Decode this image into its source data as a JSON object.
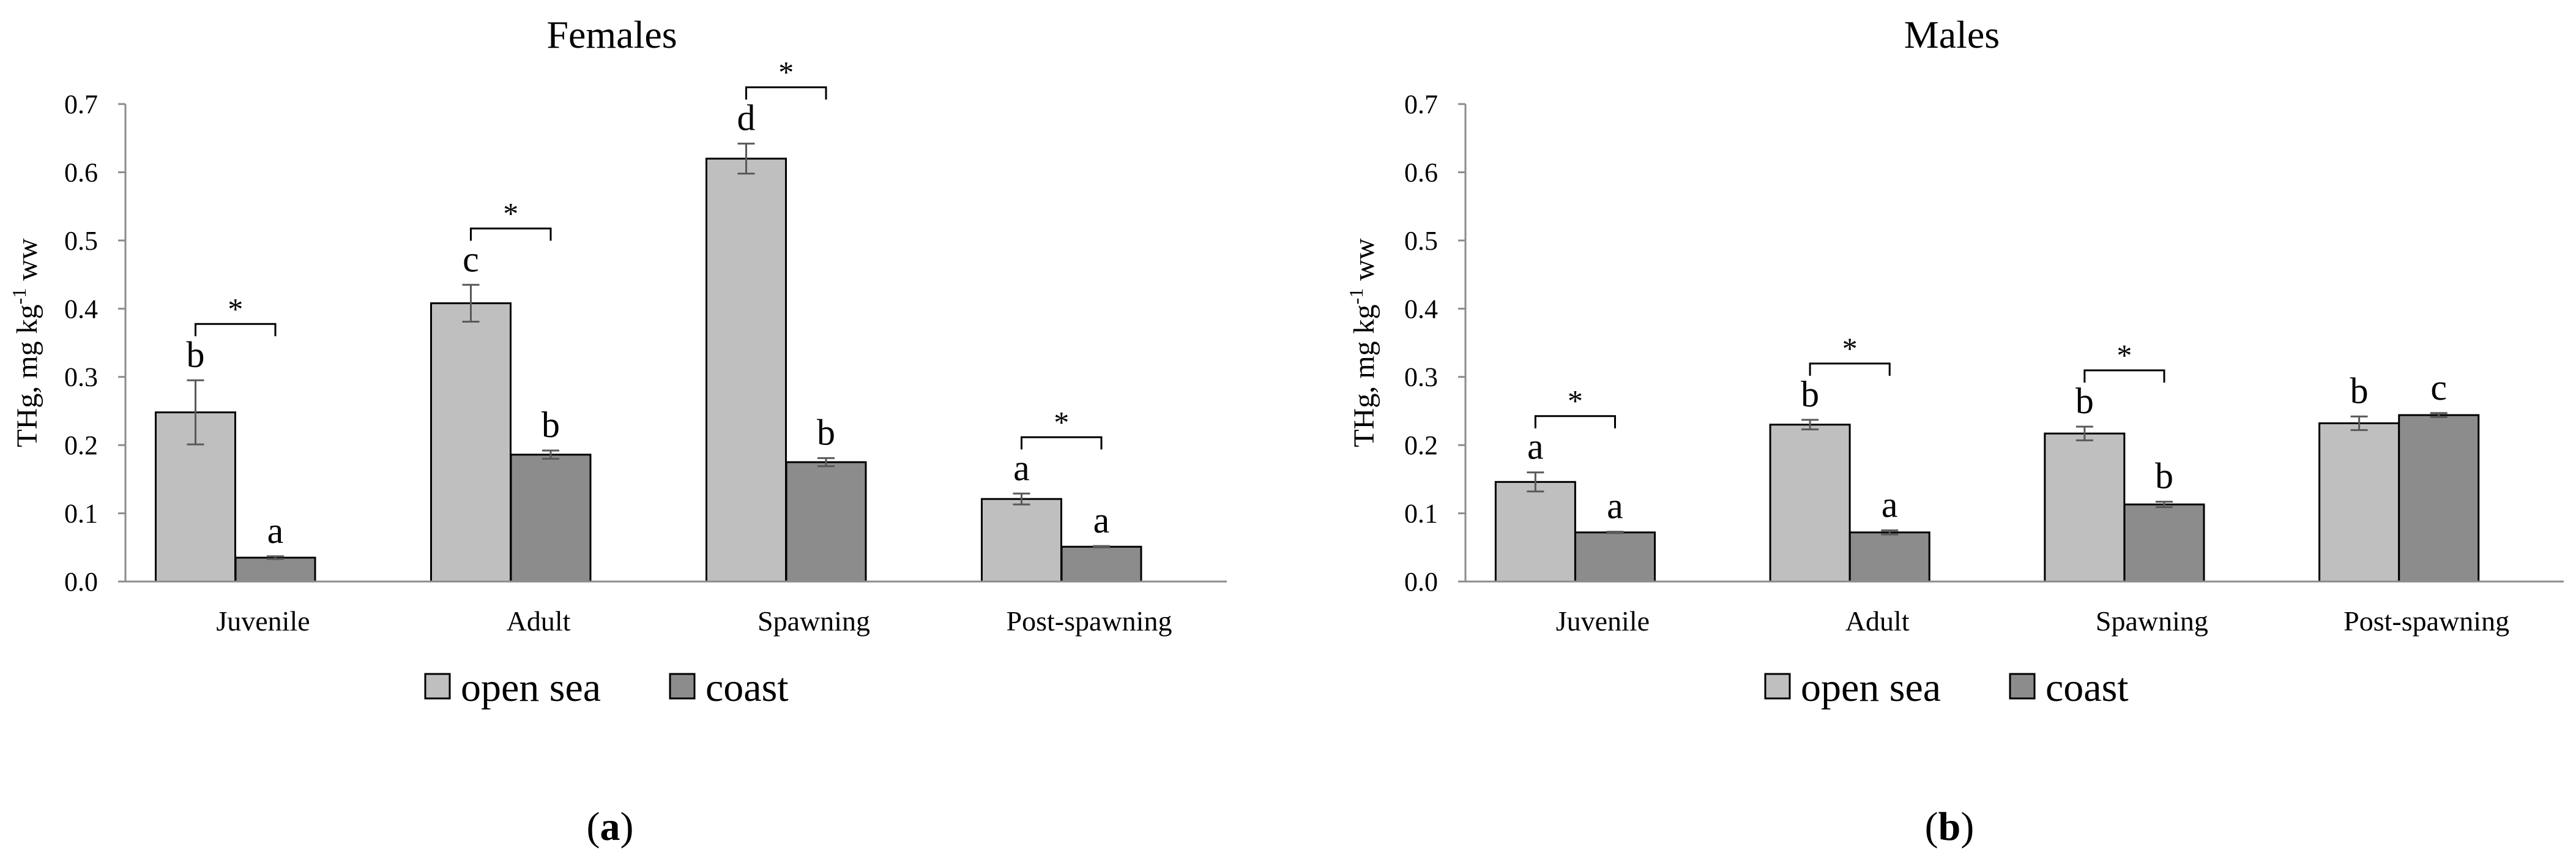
{
  "colors": {
    "open_sea": "#bfbfbf",
    "coast": "#8c8c8c",
    "error_bar": "#595959",
    "axis": "#8c8c8c"
  },
  "chart_data": [
    {
      "type": "bar",
      "title": "Females",
      "panel_label": "a",
      "ylabel": "THg, mg kg-1 ww",
      "ylabel_base": "THg, mg kg",
      "ylabel_sup": "-1",
      "ylabel_tail": " ww",
      "ylim": [
        0,
        0.7
      ],
      "yticks": [
        "0.0",
        "0.1",
        "0.2",
        "0.3",
        "0.4",
        "0.5",
        "0.6",
        "0.7"
      ],
      "categories": [
        "Juvenile",
        "Adult",
        "Spawning",
        "Post-spawning"
      ],
      "series": [
        {
          "name": "open sea",
          "values": [
            0.248,
            0.408,
            0.62,
            0.121
          ],
          "errors": [
            0.047,
            0.027,
            0.022,
            0.008
          ],
          "letters": [
            "b",
            "c",
            "d",
            "a"
          ]
        },
        {
          "name": "coast",
          "values": [
            0.035,
            0.186,
            0.175,
            0.051
          ],
          "errors": [
            0.002,
            0.006,
            0.006,
            0.001
          ],
          "letters": [
            "a",
            "b",
            "b",
            "a"
          ]
        }
      ],
      "significance": [
        "*",
        "*",
        "*",
        "*"
      ],
      "legend": [
        "open sea",
        "coast"
      ]
    },
    {
      "type": "bar",
      "title": "Males",
      "panel_label": "b",
      "ylabel": "THg, mg kg-1 ww",
      "ylabel_base": "THg, mg kg",
      "ylabel_sup": "-1",
      "ylabel_tail": " ww",
      "ylim": [
        0,
        0.7
      ],
      "yticks": [
        "0.0",
        "0.1",
        "0.2",
        "0.3",
        "0.4",
        "0.5",
        "0.6",
        "0.7"
      ],
      "categories": [
        "Juvenile",
        "Adult",
        "Spawning",
        "Post-spawning"
      ],
      "series": [
        {
          "name": "open sea",
          "values": [
            0.146,
            0.23,
            0.217,
            0.232
          ],
          "errors": [
            0.014,
            0.007,
            0.01,
            0.01
          ],
          "letters": [
            "a",
            "b",
            "b",
            "b"
          ]
        },
        {
          "name": "coast",
          "values": [
            0.072,
            0.072,
            0.113,
            0.244
          ],
          "errors": [
            0.001,
            0.003,
            0.004,
            0.003
          ],
          "letters": [
            "a",
            "a",
            "b",
            "c"
          ]
        }
      ],
      "significance": [
        "*",
        "*",
        "*",
        ""
      ],
      "legend": [
        "open sea",
        "coast"
      ]
    }
  ]
}
